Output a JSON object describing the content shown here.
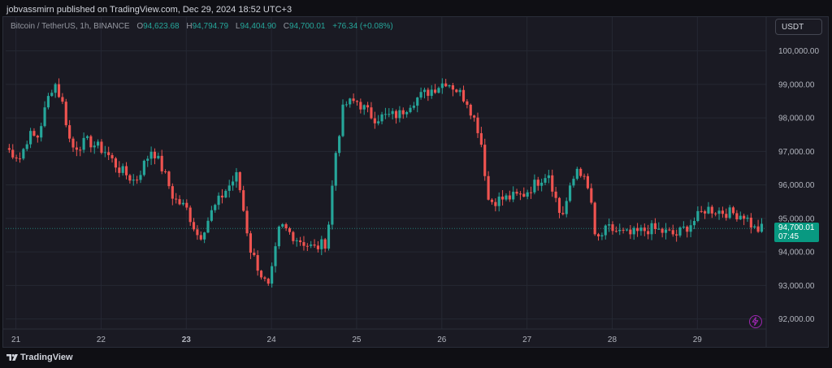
{
  "header": {
    "publisher_text": "jobvassmirn published on TradingView.com, Dec 29, 2024 18:52 UTC+3"
  },
  "legend": {
    "symbol": "Bitcoin / TetherUS, 1h, BINANCE",
    "open_label": "O",
    "open_value": "94,623.68",
    "high_label": "H",
    "high_value": "94,794.79",
    "low_label": "L",
    "low_value": "94,404.90",
    "close_label": "C",
    "close_value": "94,700.01",
    "change": "+76.34 (+0.08%)"
  },
  "currency_button": "USDT",
  "price_badge": {
    "price": "94,700.01",
    "countdown": "07:45"
  },
  "footer": {
    "brand": "TradingView"
  },
  "colors": {
    "up": "#26a69a",
    "down": "#ef5350",
    "badge": "#089981",
    "background": "#1a1a23"
  },
  "icons": {
    "logo": "tradingview-logo-icon",
    "bolt": "lightning-bolt-icon"
  },
  "chart_data": {
    "type": "candlestick",
    "interval": "1h",
    "y_axis": {
      "ticks": [
        92000,
        93000,
        94000,
        95000,
        96000,
        97000,
        98000,
        99000,
        100000
      ],
      "tick_labels": [
        "92,000.00",
        "93,000.00",
        "94,000.00",
        "95,000.00",
        "96,000.00",
        "97,000.00",
        "98,000.00",
        "99,000.00",
        "100,000.00"
      ],
      "range": [
        91700,
        100500
      ]
    },
    "x_axis": {
      "days": [
        21,
        22,
        23,
        24,
        25,
        26,
        27,
        28,
        29
      ],
      "labels": [
        "21",
        "22",
        "23",
        "24",
        "25",
        "26",
        "27",
        "28",
        "29"
      ],
      "bold": [
        false,
        false,
        true,
        false,
        false,
        false,
        false,
        false,
        false
      ],
      "range": [
        20.88,
        29.76
      ]
    },
    "current_price": 94700.01,
    "anchors": [
      [
        20.88,
        97100
      ],
      [
        21.05,
        96800
      ],
      [
        21.15,
        97500
      ],
      [
        21.25,
        97400
      ],
      [
        21.38,
        98600
      ],
      [
        21.45,
        99100
      ],
      [
        21.55,
        98400
      ],
      [
        21.65,
        97100
      ],
      [
        21.85,
        97300
      ],
      [
        22.05,
        97000
      ],
      [
        22.2,
        96500
      ],
      [
        22.4,
        96100
      ],
      [
        22.6,
        97100
      ],
      [
        22.75,
        96300
      ],
      [
        22.85,
        95600
      ],
      [
        23.0,
        95300
      ],
      [
        23.15,
        94400
      ],
      [
        23.3,
        95200
      ],
      [
        23.45,
        95800
      ],
      [
        23.6,
        96300
      ],
      [
        23.75,
        94100
      ],
      [
        23.9,
        93200
      ],
      [
        23.97,
        92900
      ],
      [
        24.1,
        94800
      ],
      [
        24.3,
        94400
      ],
      [
        24.5,
        94100
      ],
      [
        24.65,
        94300
      ],
      [
        24.75,
        96900
      ],
      [
        24.85,
        98400
      ],
      [
        25.0,
        98500
      ],
      [
        25.2,
        98000
      ],
      [
        25.5,
        98100
      ],
      [
        25.65,
        98500
      ],
      [
        25.85,
        98800
      ],
      [
        26.05,
        99100
      ],
      [
        26.15,
        98900
      ],
      [
        26.3,
        98500
      ],
      [
        26.45,
        97500
      ],
      [
        26.55,
        95500
      ],
      [
        26.75,
        95600
      ],
      [
        26.95,
        95700
      ],
      [
        27.25,
        96400
      ],
      [
        27.4,
        95000
      ],
      [
        27.6,
        96600
      ],
      [
        27.75,
        95600
      ],
      [
        27.8,
        94300
      ],
      [
        27.95,
        94700
      ],
      [
        28.2,
        94500
      ],
      [
        28.45,
        94700
      ],
      [
        28.75,
        94500
      ],
      [
        28.95,
        94900
      ],
      [
        29.1,
        95300
      ],
      [
        29.3,
        95200
      ],
      [
        29.55,
        95100
      ],
      [
        29.68,
        94650
      ],
      [
        29.76,
        94700
      ]
    ]
  }
}
